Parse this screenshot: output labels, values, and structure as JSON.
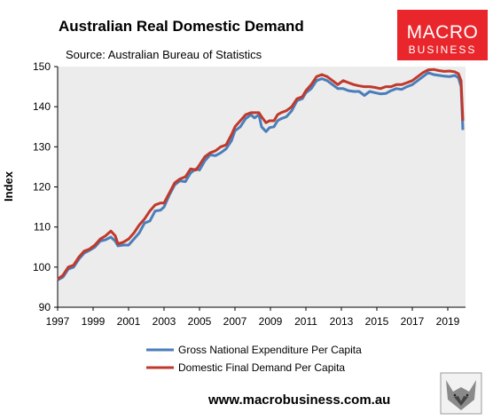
{
  "header": {
    "title": "Australian Real Domestic Demand",
    "subtitle": "Source: Australian Bureau of Statistics"
  },
  "logo": {
    "line1": "MACRO",
    "line2": "BUSINESS",
    "color": "#e8262c"
  },
  "footer": {
    "url": "www.macrobusiness.com.au"
  },
  "colors": {
    "series1": "#4a7ebb",
    "series2": "#c0392b",
    "plot_background": "#ececec"
  },
  "chart_data": {
    "type": "line",
    "title": "Australian Real Domestic Demand",
    "subtitle": "Source: Australian Bureau of Statistics",
    "ylabel": "Index",
    "xlabel": "",
    "xlim": [
      1997,
      2020
    ],
    "ylim": [
      90,
      150
    ],
    "yticks": [
      90,
      100,
      110,
      120,
      130,
      140,
      150
    ],
    "xticks": [
      1997,
      1999,
      2001,
      2003,
      2005,
      2007,
      2009,
      2011,
      2013,
      2015,
      2017,
      2019
    ],
    "grid": false,
    "legend_position": "bottom",
    "series": [
      {
        "name": "Gross National Expenditure Per Capita",
        "color": "#4a7ebb",
        "points": [
          [
            1997.0,
            96.8
          ],
          [
            1997.3,
            97.5
          ],
          [
            1997.6,
            99.5
          ],
          [
            1997.9,
            100.0
          ],
          [
            1998.2,
            102.0
          ],
          [
            1998.5,
            103.5
          ],
          [
            1998.8,
            104.2
          ],
          [
            1999.1,
            105.0
          ],
          [
            1999.4,
            106.5
          ],
          [
            1999.7,
            106.8
          ],
          [
            2000.0,
            107.5
          ],
          [
            2000.25,
            106.5
          ],
          [
            2000.4,
            105.3
          ],
          [
            2000.7,
            105.5
          ],
          [
            2001.0,
            105.5
          ],
          [
            2001.3,
            107.0
          ],
          [
            2001.6,
            108.5
          ],
          [
            2001.9,
            111.0
          ],
          [
            2002.2,
            111.5
          ],
          [
            2002.5,
            114.0
          ],
          [
            2002.8,
            114.2
          ],
          [
            2003.0,
            115.0
          ],
          [
            2003.3,
            118.0
          ],
          [
            2003.6,
            120.5
          ],
          [
            2003.9,
            121.5
          ],
          [
            2004.2,
            121.3
          ],
          [
            2004.5,
            123.5
          ],
          [
            2004.8,
            124.5
          ],
          [
            2005.0,
            124.2
          ],
          [
            2005.3,
            126.5
          ],
          [
            2005.6,
            128.0
          ],
          [
            2005.9,
            127.8
          ],
          [
            2006.2,
            128.5
          ],
          [
            2006.5,
            129.5
          ],
          [
            2006.8,
            131.5
          ],
          [
            2007.0,
            134.0
          ],
          [
            2007.3,
            135.0
          ],
          [
            2007.6,
            137.0
          ],
          [
            2007.9,
            138.0
          ],
          [
            2008.1,
            137.2
          ],
          [
            2008.35,
            138.0
          ],
          [
            2008.5,
            135.0
          ],
          [
            2008.75,
            133.8
          ],
          [
            2008.95,
            134.8
          ],
          [
            2009.2,
            135.0
          ],
          [
            2009.4,
            136.5
          ],
          [
            2009.6,
            137.0
          ],
          [
            2009.9,
            137.5
          ],
          [
            2010.2,
            139.0
          ],
          [
            2010.5,
            141.5
          ],
          [
            2010.8,
            142.0
          ],
          [
            2011.0,
            143.5
          ],
          [
            2011.3,
            144.5
          ],
          [
            2011.6,
            146.5
          ],
          [
            2011.9,
            147.0
          ],
          [
            2012.2,
            146.5
          ],
          [
            2012.5,
            145.5
          ],
          [
            2012.8,
            144.5
          ],
          [
            2013.1,
            144.5
          ],
          [
            2013.4,
            144.0
          ],
          [
            2013.7,
            143.8
          ],
          [
            2014.0,
            143.8
          ],
          [
            2014.3,
            142.8
          ],
          [
            2014.6,
            143.8
          ],
          [
            2014.9,
            143.5
          ],
          [
            2015.2,
            143.2
          ],
          [
            2015.5,
            143.3
          ],
          [
            2015.8,
            144.0
          ],
          [
            2016.1,
            144.5
          ],
          [
            2016.4,
            144.3
          ],
          [
            2016.7,
            145.0
          ],
          [
            2017.0,
            145.5
          ],
          [
            2017.3,
            146.5
          ],
          [
            2017.6,
            147.5
          ],
          [
            2017.9,
            148.5
          ],
          [
            2018.2,
            148.0
          ],
          [
            2018.5,
            147.8
          ],
          [
            2018.8,
            147.6
          ],
          [
            2019.1,
            147.5
          ],
          [
            2019.4,
            147.8
          ],
          [
            2019.6,
            147.2
          ],
          [
            2019.75,
            145.0
          ],
          [
            2019.85,
            134.2
          ]
        ]
      },
      {
        "name": "Domestic Final Demand Per Capita",
        "color": "#c0392b",
        "points": [
          [
            1997.0,
            97.0
          ],
          [
            1997.3,
            98.0
          ],
          [
            1997.6,
            100.0
          ],
          [
            1997.9,
            100.5
          ],
          [
            1998.2,
            102.5
          ],
          [
            1998.5,
            104.0
          ],
          [
            1998.8,
            104.5
          ],
          [
            1999.1,
            105.5
          ],
          [
            1999.4,
            107.0
          ],
          [
            1999.7,
            107.8
          ],
          [
            2000.0,
            109.0
          ],
          [
            2000.25,
            107.8
          ],
          [
            2000.4,
            105.8
          ],
          [
            2000.7,
            106.2
          ],
          [
            2001.0,
            107.0
          ],
          [
            2001.3,
            108.5
          ],
          [
            2001.6,
            110.5
          ],
          [
            2001.9,
            112.0
          ],
          [
            2002.2,
            114.0
          ],
          [
            2002.5,
            115.5
          ],
          [
            2002.8,
            116.0
          ],
          [
            2003.0,
            116.0
          ],
          [
            2003.3,
            118.5
          ],
          [
            2003.6,
            121.0
          ],
          [
            2003.9,
            122.0
          ],
          [
            2004.2,
            122.5
          ],
          [
            2004.5,
            124.5
          ],
          [
            2004.8,
            124.2
          ],
          [
            2005.0,
            125.5
          ],
          [
            2005.3,
            127.5
          ],
          [
            2005.6,
            128.5
          ],
          [
            2005.9,
            129.0
          ],
          [
            2006.2,
            130.0
          ],
          [
            2006.5,
            130.5
          ],
          [
            2006.8,
            133.0
          ],
          [
            2007.0,
            135.0
          ],
          [
            2007.3,
            136.5
          ],
          [
            2007.6,
            138.0
          ],
          [
            2007.9,
            138.5
          ],
          [
            2008.1,
            138.5
          ],
          [
            2008.35,
            138.5
          ],
          [
            2008.5,
            137.5
          ],
          [
            2008.75,
            136.0
          ],
          [
            2008.95,
            136.5
          ],
          [
            2009.2,
            136.5
          ],
          [
            2009.4,
            138.0
          ],
          [
            2009.6,
            138.5
          ],
          [
            2009.9,
            139.0
          ],
          [
            2010.2,
            140.0
          ],
          [
            2010.5,
            142.0
          ],
          [
            2010.8,
            142.5
          ],
          [
            2011.0,
            144.0
          ],
          [
            2011.3,
            145.5
          ],
          [
            2011.6,
            147.5
          ],
          [
            2011.9,
            148.0
          ],
          [
            2012.2,
            147.5
          ],
          [
            2012.5,
            146.5
          ],
          [
            2012.8,
            145.5
          ],
          [
            2013.1,
            146.5
          ],
          [
            2013.4,
            146.0
          ],
          [
            2013.7,
            145.5
          ],
          [
            2014.0,
            145.2
          ],
          [
            2014.3,
            145.0
          ],
          [
            2014.6,
            145.0
          ],
          [
            2014.9,
            144.8
          ],
          [
            2015.2,
            144.5
          ],
          [
            2015.5,
            145.0
          ],
          [
            2015.8,
            145.0
          ],
          [
            2016.1,
            145.5
          ],
          [
            2016.4,
            145.5
          ],
          [
            2016.7,
            146.0
          ],
          [
            2017.0,
            146.5
          ],
          [
            2017.3,
            147.5
          ],
          [
            2017.6,
            148.5
          ],
          [
            2017.9,
            149.2
          ],
          [
            2018.2,
            149.3
          ],
          [
            2018.5,
            149.0
          ],
          [
            2018.8,
            148.8
          ],
          [
            2019.1,
            148.9
          ],
          [
            2019.4,
            148.7
          ],
          [
            2019.6,
            148.2
          ],
          [
            2019.75,
            146.5
          ],
          [
            2019.85,
            136.5
          ]
        ]
      }
    ]
  }
}
